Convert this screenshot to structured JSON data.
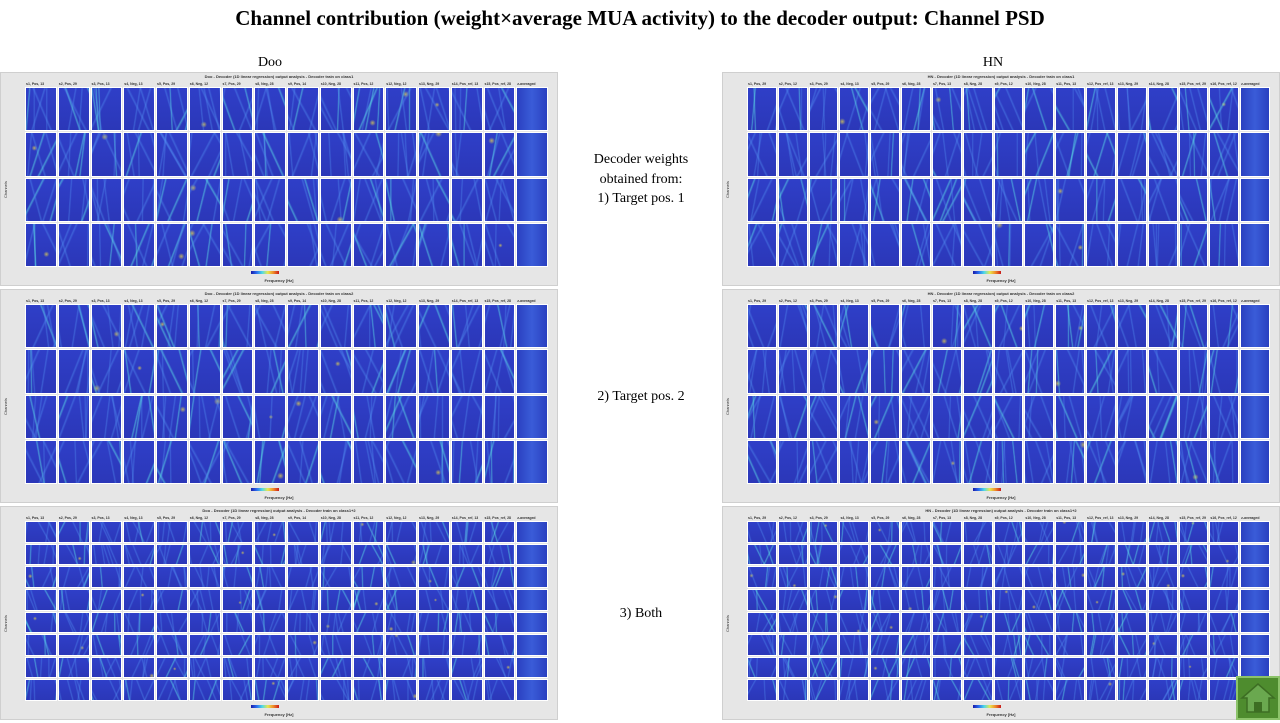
{
  "slide": {
    "title": "Channel contribution (weight×average MUA activity) to the decoder output: Channel PSD"
  },
  "columns": {
    "left": "Doo",
    "right": "HN"
  },
  "middle": {
    "row1": [
      "Decoder weights",
      "obtained from:",
      "1) Target pos. 1"
    ],
    "row2": "2) Target  pos. 2",
    "row3": "3) Both"
  },
  "panels": [
    {
      "id": "doo-1",
      "title": "Doo - Decoder (1D linear regression) output analysis - Decoder train on class1",
      "rows": 4,
      "headers": [
        "s1, Pos, 13",
        "s2, Pos, 29",
        "s3, Pos, 13",
        "s4, Neg, 13",
        "s5, Pos, 29",
        "s6, Neg, 12",
        "s7, Pos, 29",
        "s8, Neg, 28",
        "s9, Pos, 14",
        "s10, Neg, 28",
        "s11, Pos, 12",
        "s12, Neg, 12",
        "s13, Neg, 29",
        "s14, Pos_ref, 13",
        "s15, Pos_ref, 28",
        "z-averaged"
      ]
    },
    {
      "id": "hn-1",
      "title": "HN - Decoder (1D linear regression) output analysis - Decoder train on class1",
      "rows": 4,
      "headers": [
        "s1, Pos, 29",
        "s2, Pos, 12",
        "s3, Pos, 29",
        "s4, Neg, 13",
        "s5, Pos, 29",
        "s6, Neg, 28",
        "s7, Pos, 13",
        "s8, Neg, 28",
        "s9, Pos, 12",
        "s10, Neg, 28",
        "s11, Pos, 13",
        "s12, Pos_ref, 13",
        "s13, Neg, 29",
        "s14, Neg, 28",
        "s15, Pos_ref, 29",
        "s16, Pos_ref, 12",
        "z-averaged"
      ]
    },
    {
      "id": "doo-2",
      "title": "Doo - Decoder (1D linear regression) output analysis - Decoder train on class2",
      "rows": 4,
      "headers": [
        "s1, Pos, 13",
        "s2, Pos, 29",
        "s3, Pos, 13",
        "s4, Neg, 13",
        "s5, Pos, 29",
        "s6, Neg, 12",
        "s7, Pos, 29",
        "s8, Neg, 28",
        "s9, Pos, 14",
        "s10, Neg, 28",
        "s11, Pos, 12",
        "s12, Neg, 12",
        "s13, Neg, 29",
        "s14, Pos_ref, 13",
        "s15, Pos_ref, 28",
        "z-averaged"
      ]
    },
    {
      "id": "hn-2",
      "title": "HN - Decoder (1D linear regression) output analysis - Decoder train on class2",
      "rows": 4,
      "headers": [
        "s1, Pos, 29",
        "s2, Pos, 12",
        "s3, Pos, 29",
        "s4, Neg, 13",
        "s5, Pos, 29",
        "s6, Neg, 28",
        "s7, Pos, 13",
        "s8, Neg, 28",
        "s9, Pos, 12",
        "s10, Neg, 28",
        "s11, Pos, 13",
        "s12, Pos_ref, 13",
        "s13, Neg, 29",
        "s14, Neg, 28",
        "s15, Pos_ref, 29",
        "s16, Pos_ref, 12",
        "z-averaged"
      ]
    },
    {
      "id": "doo-3",
      "title": "Doo - Decoder (1D linear regression) output analysis - Decoder train on class1+2",
      "rows": 8,
      "headers": [
        "s1, Pos, 13",
        "s2, Pos, 29",
        "s3, Pos, 13",
        "s4, Neg, 13",
        "s5, Pos, 29",
        "s6, Neg, 12",
        "s7, Pos, 29",
        "s8, Neg, 28",
        "s9, Pos, 14",
        "s10, Neg, 28",
        "s11, Pos, 12",
        "s12, Neg, 12",
        "s13, Neg, 29",
        "s14, Pos_ref, 13",
        "s15, Pos_ref, 28",
        "z-averaged"
      ]
    },
    {
      "id": "hn-3",
      "title": "HN - Decoder (1D linear regression) output analysis - Decoder train on class1+2",
      "rows": 8,
      "headers": [
        "s1, Pos, 29",
        "s2, Pos, 12",
        "s3, Pos, 29",
        "s4, Neg, 13",
        "s5, Pos, 29",
        "s6, Neg, 28",
        "s7, Pos, 13",
        "s8, Neg, 28",
        "s9, Pos, 12",
        "s10, Neg, 28",
        "s11, Pos, 13",
        "s12, Pos_ref, 13",
        "s13, Neg, 29",
        "s14, Neg, 28",
        "s15, Pos_ref, 29",
        "s16, Pos_ref, 12",
        "z-averaged"
      ]
    }
  ],
  "axis": {
    "ylabel": "Channels",
    "xlabel": "Frequency [Hz]"
  },
  "colors": {
    "heatmap_base": "#2f3fc8",
    "panel_bg": "#e6e6e6"
  },
  "icons": {
    "home": "home-icon"
  }
}
